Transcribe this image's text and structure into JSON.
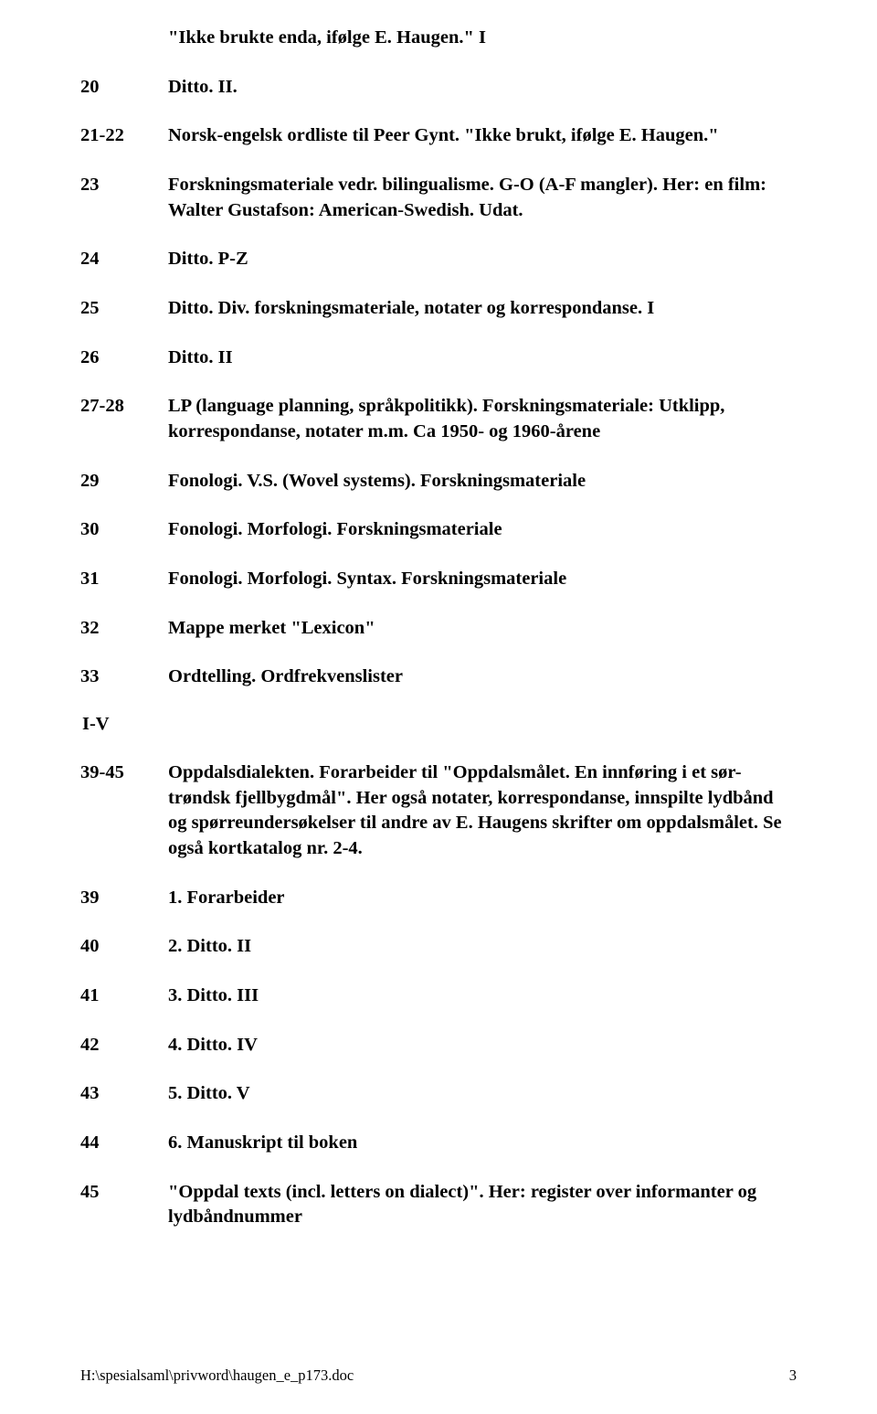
{
  "topLine": "\"Ikke brukte enda, ifølge E. Haugen.\" I",
  "entries1": [
    {
      "ref": "20",
      "desc": "Ditto. II."
    },
    {
      "ref": "21-22",
      "desc": "Norsk-engelsk ordliste til Peer Gynt. \"Ikke brukt, ifølge E. Haugen.\""
    },
    {
      "ref": "23",
      "desc": "Forskningsmateriale vedr. bilingualisme. G-O (A-F mangler). Her: en film: Walter Gustafson: American-Swedish. Udat."
    },
    {
      "ref": "24",
      "desc": "Ditto. P-Z"
    },
    {
      "ref": "25",
      "desc": "Ditto. Div. forskningsmateriale, notater og korrespondanse. I"
    },
    {
      "ref": "26",
      "desc": "Ditto. II"
    },
    {
      "ref": "27-28",
      "desc": "LP (language planning, språkpolitikk). Forskningsmateriale: Utklipp, korrespondanse, notater m.m. Ca 1950- og 1960-årene"
    },
    {
      "ref": "29",
      "desc": "Fonologi. V.S. (Wovel systems). Forskningsmateriale"
    },
    {
      "ref": "30",
      "desc": "Fonologi. Morfologi. Forskningsmateriale"
    },
    {
      "ref": "31",
      "desc": "Fonologi. Morfologi. Syntax. Forskningsmateriale"
    },
    {
      "ref": "32",
      "desc": "Mappe merket \"Lexicon\""
    },
    {
      "ref": "33",
      "desc": "Ordtelling. Ordfrekvenslister"
    }
  ],
  "sectionMarker": "I-V",
  "entries2": [
    {
      "ref": "39-45",
      "desc": "Oppdalsdialekten. Forarbeider til \"Oppdalsmålet. En innføring i et sør-trøndsk fjellbygdmål\". Her også notater, korrespondanse, innspilte lydbånd og spørreundersøkelser til andre av E. Haugens skrifter om oppdalsmålet. Se også kortkatalog nr. 2-4."
    },
    {
      "ref": "39",
      "desc": "1. Forarbeider"
    },
    {
      "ref": "40",
      "desc": "2. Ditto. II"
    },
    {
      "ref": "41",
      "desc": "3. Ditto. III"
    },
    {
      "ref": "42",
      "desc": "4. Ditto. IV"
    },
    {
      "ref": "43",
      "desc": "5. Ditto. V"
    },
    {
      "ref": "44",
      "desc": "6. Manuskript til boken"
    },
    {
      "ref": "45",
      "desc": " \"Oppdal texts (incl. letters on dialect)\". Her: register over informanter og lydbåndnummer"
    }
  ],
  "footer": {
    "path": "H:\\spesialsaml\\privword\\haugen_e_p173.doc",
    "page": "3"
  }
}
